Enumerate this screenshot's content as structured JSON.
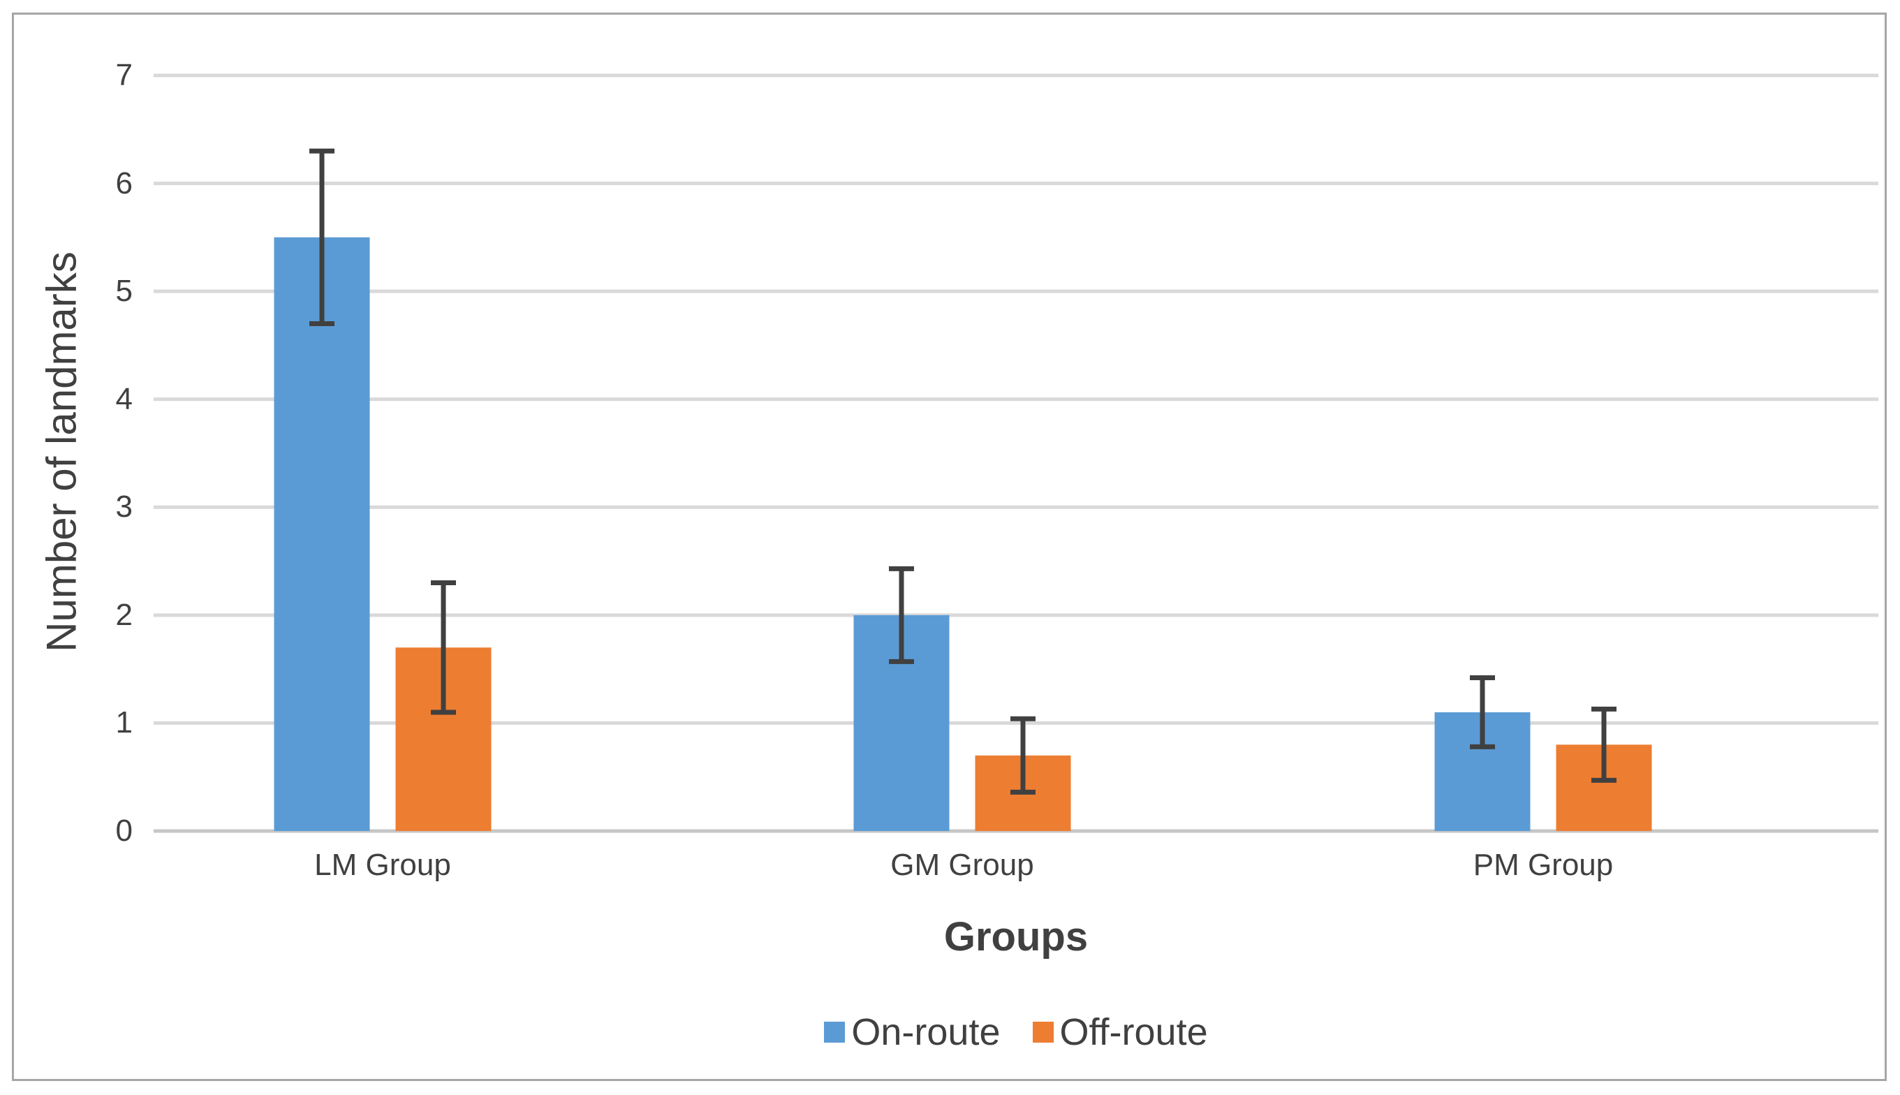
{
  "chart_data": {
    "type": "bar",
    "title": "",
    "xlabel": "Groups",
    "ylabel": "Number of landmarks",
    "categories": [
      "LM Group",
      "GM Group",
      "PM Group"
    ],
    "series": [
      {
        "name": "On-route",
        "color": "#5B9BD5",
        "values": [
          5.5,
          2.0,
          1.1
        ],
        "error_plus": [
          0.8,
          0.43,
          0.32
        ],
        "error_minus": [
          0.8,
          0.43,
          0.32
        ]
      },
      {
        "name": "Off-route",
        "color": "#ED7D31",
        "values": [
          1.7,
          0.7,
          0.8
        ],
        "error_plus": [
          0.6,
          0.34,
          0.33
        ],
        "error_minus": [
          0.6,
          0.34,
          0.33
        ]
      }
    ],
    "ylim": [
      0,
      7
    ],
    "y_tick_labels": [
      "0",
      "1",
      "2",
      "3",
      "4",
      "5",
      "6",
      "7"
    ],
    "grid": true,
    "legend_position": "bottom",
    "style": {
      "gridline_color": "#D9D9D9",
      "zero_line_color": "#C6C6C6",
      "error_bar_color": "#404040",
      "text_color": "#404040",
      "figure_border_color": "#A6A6A6",
      "background_color": "#FFFFFF"
    }
  }
}
